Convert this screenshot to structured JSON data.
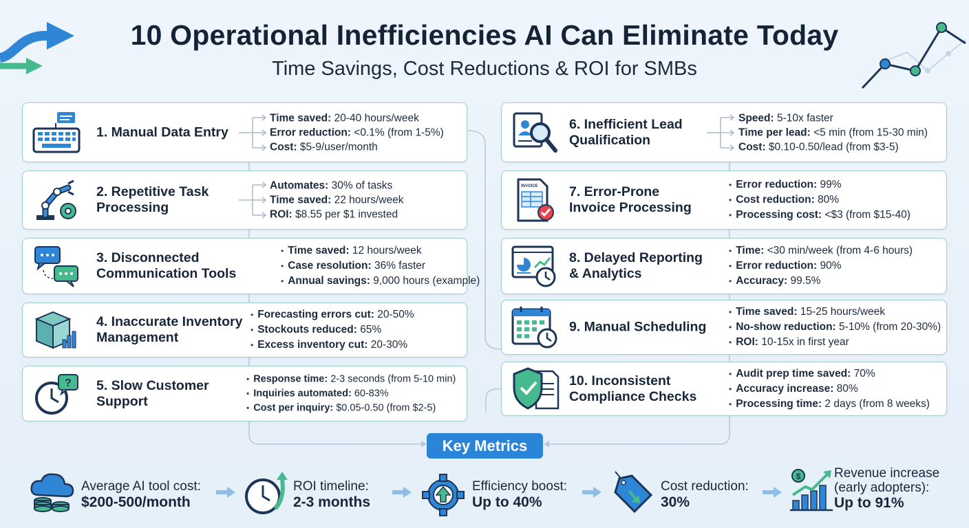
{
  "header": {
    "title": "10 Operational Inefficiencies AI Can Eliminate Today",
    "subtitle": "Time Savings, Cost Reductions & ROI for SMBs"
  },
  "colors": {
    "accent_blue": "#2a84d8",
    "accent_green": "#3fb58a",
    "card_border": "#9fd1c4",
    "navy": "#1d3557"
  },
  "cards": [
    {
      "title": "1. Manual Data Entry",
      "icon": "keyboard-icon",
      "metrics": [
        {
          "label": "Time saved:",
          "value": " 20-40 hours/week"
        },
        {
          "label": "Error reduction:",
          "value": " <0.1% (from 1-5%)"
        },
        {
          "label": "Cost:",
          "value": " $5-9/user/month"
        }
      ]
    },
    {
      "title": "2. Repetitive Task Processing",
      "icon": "robot-arm-icon",
      "metrics": [
        {
          "label": "Automates:",
          "value": " 30% of tasks"
        },
        {
          "label": "Time saved:",
          "value": " 22 hours/week"
        },
        {
          "label": "ROI:",
          "value": " $8.55 per $1 invested"
        }
      ]
    },
    {
      "title": "3. Disconnected Communication Tools",
      "icon": "chat-bubbles-icon",
      "metrics": [
        {
          "label": "Time saved:",
          "value": " 12 hours/week"
        },
        {
          "label": "Case resolution:",
          "value": " 36% faster"
        },
        {
          "label": "Annual savings:",
          "value": " 9,000 hours (example)"
        }
      ]
    },
    {
      "title": "4. Inaccurate Inventory Management",
      "icon": "inventory-box-icon",
      "metrics": [
        {
          "label": "Forecasting errors cut:",
          "value": " 20-50%"
        },
        {
          "label": "Stockouts reduced:",
          "value": " 65%"
        },
        {
          "label": "Excess inventory cut:",
          "value": " 20-30%"
        }
      ]
    },
    {
      "title": "5. Slow Customer Support",
      "icon": "clock-question-icon",
      "metrics": [
        {
          "label": "Response time:",
          "value": " 2-3 seconds (from 5-10 min)"
        },
        {
          "label": "Inquiries automated:",
          "value": " 60-83%"
        },
        {
          "label": "Cost per inquiry:",
          "value": " $0.05-0.50 (from $2-5)"
        }
      ]
    },
    {
      "title": "6. Inefficient Lead Qualification",
      "icon": "profile-magnifier-icon",
      "metrics": [
        {
          "label": "Speed:",
          "value": " 5-10x faster"
        },
        {
          "label": "Time per lead:",
          "value": " <5 min (from 15-30 min)"
        },
        {
          "label": "Cost:",
          "value": " $0.10-0.50/lead (from $3-5)"
        }
      ]
    },
    {
      "title": "7. Error-Prone Invoice Processing",
      "icon": "invoice-check-icon",
      "icon_text": "INVOICE",
      "metrics": [
        {
          "label": "Error reduction:",
          "value": " 99%"
        },
        {
          "label": "Cost reduction:",
          "value": " 80%"
        },
        {
          "label": "Processing cost:",
          "value": " <$3 (from $15-40)"
        }
      ]
    },
    {
      "title": "8. Delayed Reporting & Analytics",
      "icon": "dashboard-clock-icon",
      "metrics": [
        {
          "label": "Time:",
          "value": " <30 min/week (from 4-6 hours)"
        },
        {
          "label": "Error reduction:",
          "value": " 90%"
        },
        {
          "label": "Accuracy:",
          "value": " 99.5%"
        }
      ]
    },
    {
      "title": "9. Manual Scheduling",
      "icon": "calendar-clock-icon",
      "metrics": [
        {
          "label": "Time saved:",
          "value": " 15-25 hours/week"
        },
        {
          "label": "No-show reduction:",
          "value": " 5-10% (from 20-30%)"
        },
        {
          "label": "ROI:",
          "value": " 10-15x in first year"
        }
      ]
    },
    {
      "title": "10. Inconsistent Compliance Checks",
      "icon": "shield-document-icon",
      "metrics": [
        {
          "label": "Audit prep time saved:",
          "value": " 70%"
        },
        {
          "label": "Accuracy increase:",
          "value": " 80%"
        },
        {
          "label": "Processing time:",
          "value": " 2 days (from 8 weeks)"
        }
      ]
    }
  ],
  "key_metrics": {
    "label": "Key Metrics",
    "items": [
      {
        "label": "Average AI tool cost:",
        "value": "$200-500/month",
        "icon": "cloud-coins-icon"
      },
      {
        "label": "ROI timeline:",
        "value": "2-3 months",
        "icon": "clock-arrow-icon"
      },
      {
        "label": "Efficiency boost:",
        "value": "Up to 40%",
        "icon": "gear-arrow-icon"
      },
      {
        "label": "Cost reduction:",
        "value": "30%",
        "icon": "price-tag-icon"
      },
      {
        "label": "Revenue increase (early adopters):",
        "value": "Up to 91%",
        "icon": "growth-chart-icon"
      }
    ]
  }
}
